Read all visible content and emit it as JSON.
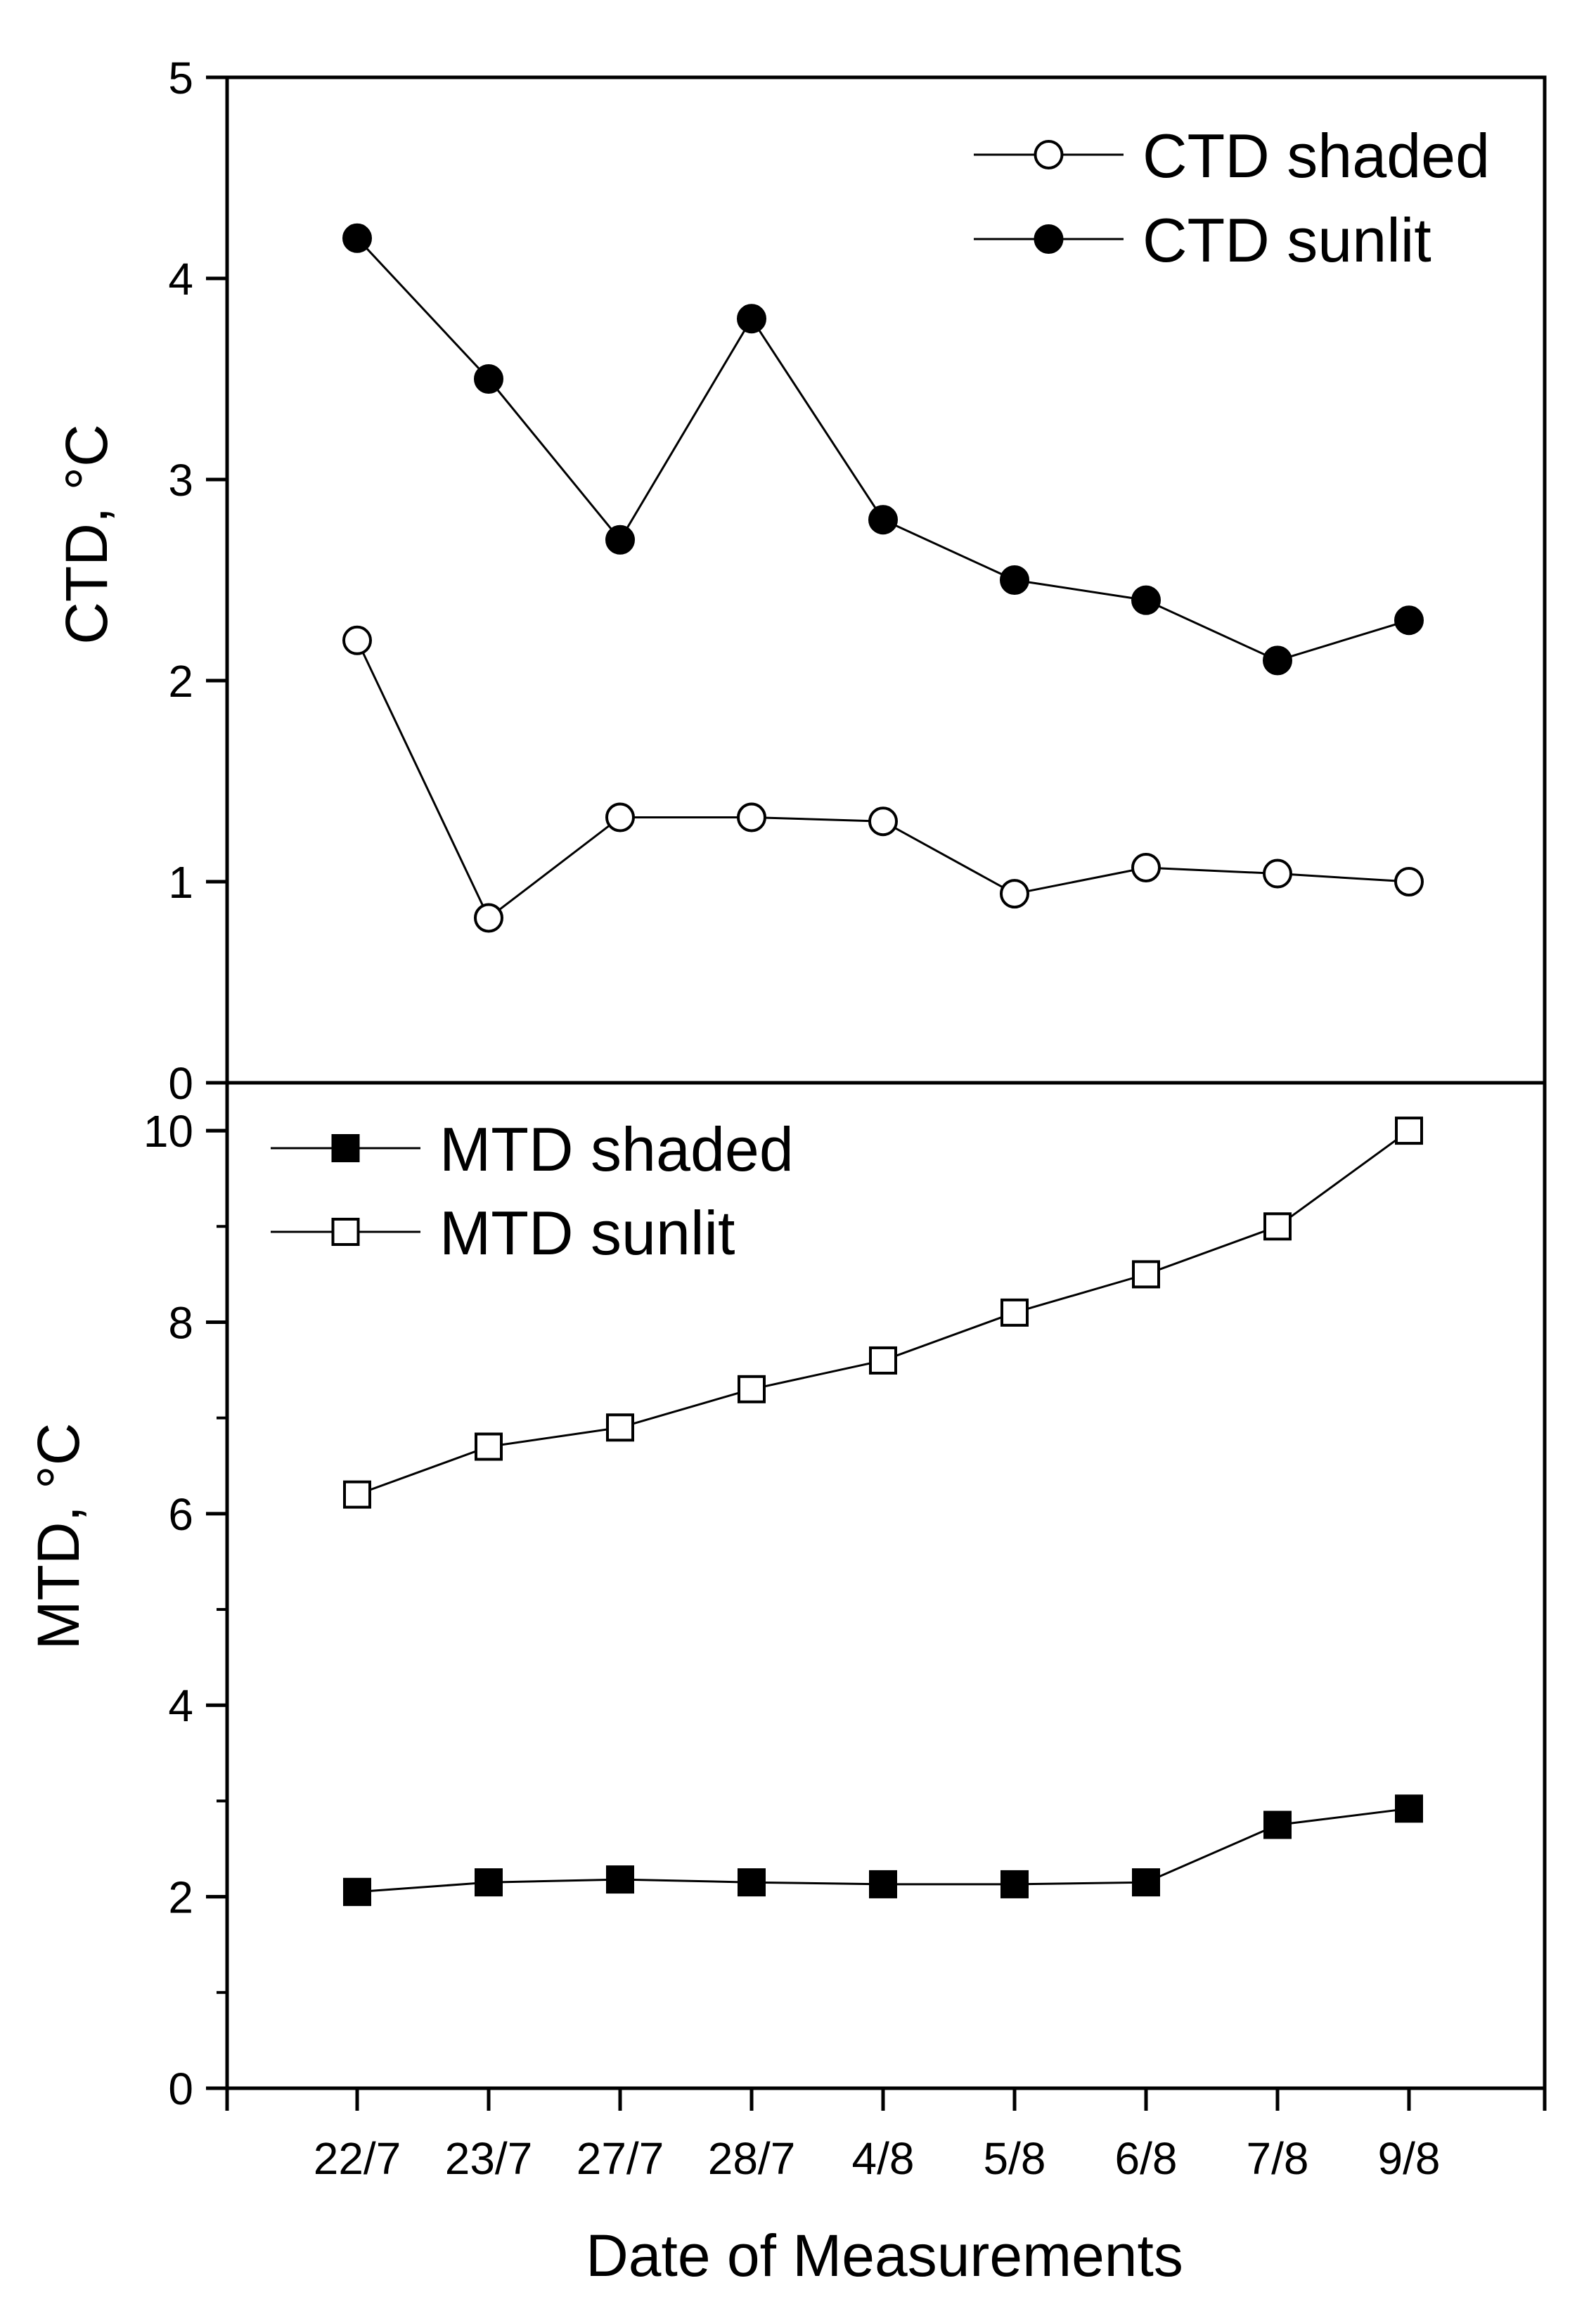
{
  "chart_data": [
    {
      "type": "line",
      "panel": "top",
      "ylabel": "CTD, °C",
      "xlabel": "",
      "ylim": [
        0,
        5
      ],
      "yticks": [
        0,
        1,
        2,
        3,
        4,
        5
      ],
      "ytick_labels": [
        "0",
        "1",
        "2",
        "3",
        "4",
        "5"
      ],
      "categories": [
        "22/7",
        "23/7",
        "27/7",
        "28/7",
        "4/8",
        "5/8",
        "6/8",
        "7/8",
        "9/8"
      ],
      "legend_position": "top-right",
      "series": [
        {
          "name": "CTD shaded",
          "marker": "circle-open",
          "values": [
            2.2,
            0.82,
            1.32,
            1.32,
            1.3,
            0.94,
            1.07,
            1.04,
            1.0
          ]
        },
        {
          "name": "CTD sunlit",
          "marker": "circle-filled",
          "values": [
            4.2,
            3.5,
            2.7,
            3.8,
            2.8,
            2.5,
            2.4,
            2.1,
            2.3
          ]
        }
      ]
    },
    {
      "type": "line",
      "panel": "bottom",
      "ylabel": "MTD, °C",
      "xlabel": "Date of Measurements",
      "ylim": [
        0,
        10.5
      ],
      "yticks": [
        0,
        2,
        4,
        6,
        8,
        10
      ],
      "ytick_labels": [
        "0",
        "2",
        "4",
        "6",
        "8",
        "10"
      ],
      "categories": [
        "22/7",
        "23/7",
        "27/7",
        "28/7",
        "4/8",
        "5/8",
        "6/8",
        "7/8",
        "9/8"
      ],
      "legend_position": "top-left",
      "series": [
        {
          "name": "MTD shaded",
          "marker": "square-filled",
          "values": [
            2.05,
            2.15,
            2.18,
            2.15,
            2.13,
            2.13,
            2.15,
            2.75,
            2.92
          ]
        },
        {
          "name": "MTD sunlit",
          "marker": "square-open",
          "values": [
            6.2,
            6.7,
            6.9,
            7.3,
            7.6,
            8.1,
            8.5,
            9.0,
            10.0
          ]
        }
      ]
    }
  ]
}
